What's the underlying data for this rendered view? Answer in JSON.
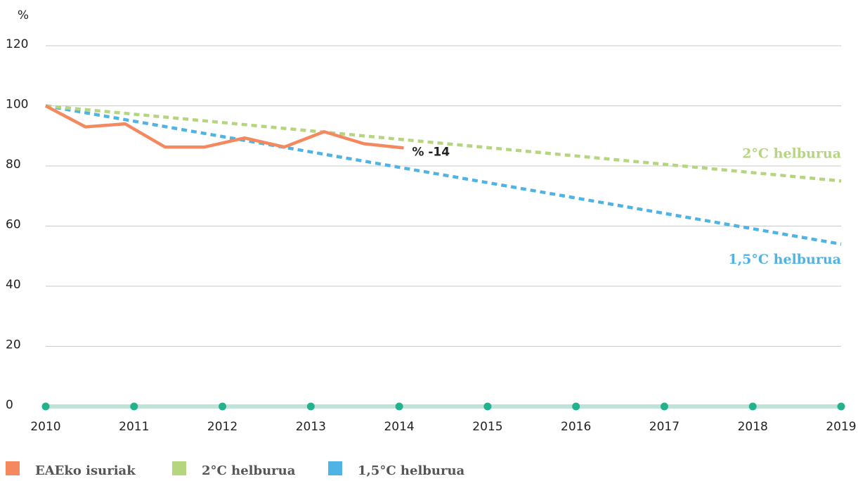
{
  "chart_data": {
    "type": "line",
    "y_label": "%",
    "xlim": [
      2010,
      2019
    ],
    "xticks": [
      2010,
      2011,
      2012,
      2013,
      2014,
      2015,
      2016,
      2017,
      2018,
      2019
    ],
    "ylim": [
      0,
      120
    ],
    "yticks": [
      0,
      20,
      40,
      60,
      80,
      100,
      120
    ],
    "grid": true,
    "annotation": "% -14",
    "series": [
      {
        "name": "EAEko isuriak",
        "color": "#f4895f",
        "style": "solid",
        "x": [
          2010,
          2010.45,
          2010.9,
          2011.35,
          2011.8,
          2012.25,
          2012.7,
          2013.15,
          2013.6,
          2014.05
        ],
        "values": [
          100,
          93,
          94,
          86.3,
          86.3,
          89.3,
          86.3,
          91.4,
          87.4,
          86
        ]
      },
      {
        "name": "2°C helburua",
        "color": "#b5d67f",
        "style": "dashed",
        "x": [
          2010,
          2019
        ],
        "values": [
          100,
          75
        ]
      },
      {
        "name": "1,5°C helburua",
        "color": "#4fb3e4",
        "style": "dashed",
        "x": [
          2010,
          2019
        ],
        "values": [
          100,
          54
        ]
      }
    ]
  }
}
